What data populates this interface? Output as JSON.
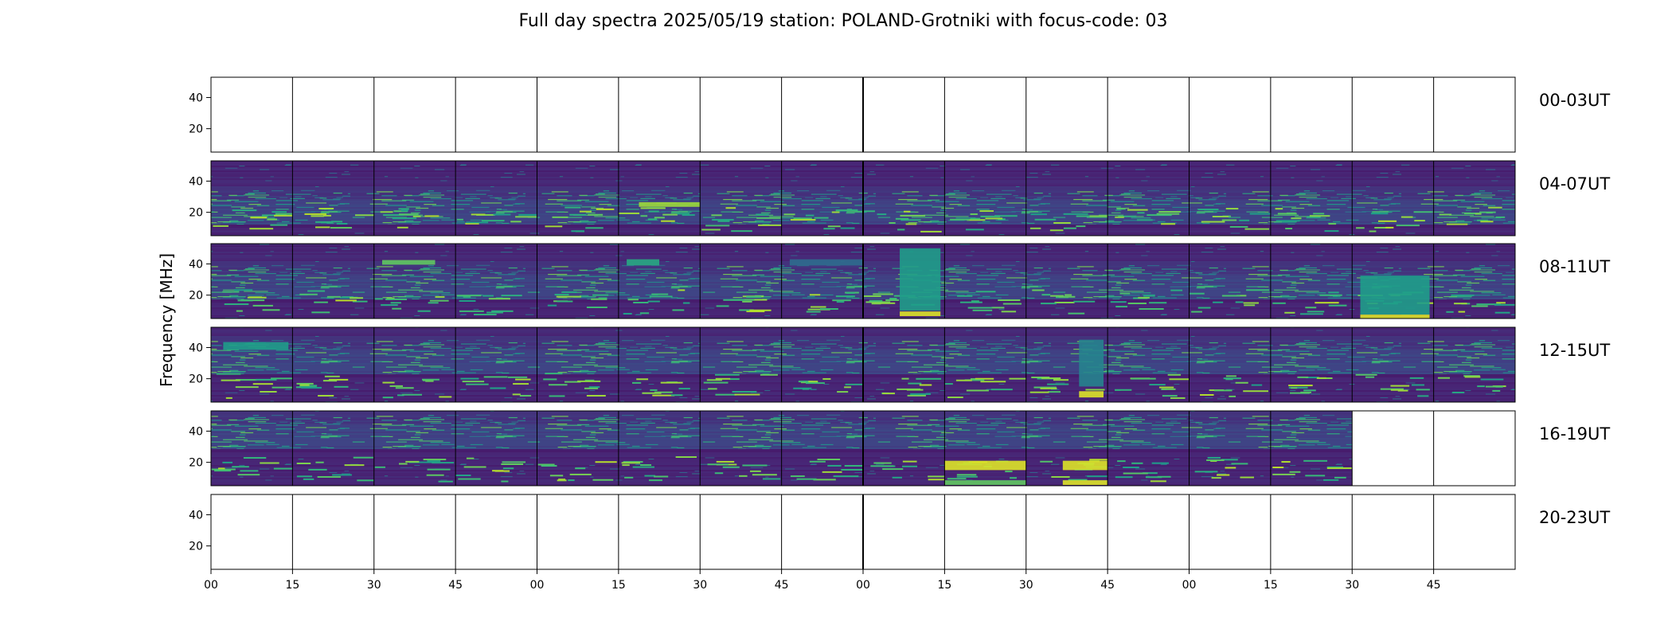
{
  "chart_data": {
    "type": "heatmap",
    "title": "Full day spectra 2025/05/19 station: POLAND-Grotniki with focus-code: 03",
    "ylabel": "Frequency [MHz]",
    "colormap": "viridis",
    "colormap_colors": [
      "#440154",
      "#482878",
      "#3e4989",
      "#31688e",
      "#26828e",
      "#1f9e89",
      "#35b779",
      "#6ece58",
      "#b5de2b",
      "#fde725"
    ],
    "freq_range_mhz": [
      5,
      53
    ],
    "yticks": [
      "40",
      "20"
    ],
    "ytick_values": [
      40,
      20
    ],
    "xticks": [
      "00",
      "15",
      "30",
      "45",
      "00",
      "15",
      "30",
      "45",
      "00",
      "15",
      "30",
      "45",
      "00",
      "15",
      "30",
      "45"
    ],
    "rows": [
      {
        "label": "00-03UT",
        "panels": [
          0,
          0,
          0,
          0,
          0,
          0,
          0,
          0,
          0,
          0,
          0,
          0,
          0,
          0,
          0,
          0
        ]
      },
      {
        "label": "04-07UT",
        "panels": [
          1,
          1,
          1,
          1,
          1,
          1,
          1,
          1,
          1,
          1,
          1,
          1,
          1,
          1,
          1,
          1
        ],
        "features": [
          {
            "panel": 5,
            "freq": 25,
            "intensity": 0.85,
            "start": 0.25,
            "end": 1.0,
            "width_mhz": 3
          }
        ]
      },
      {
        "label": "08-11UT",
        "panels": [
          1,
          1,
          1,
          1,
          1,
          1,
          1,
          1,
          1,
          1,
          1,
          1,
          1,
          1,
          1,
          1
        ],
        "features": [
          {
            "panel": 2,
            "freq": 41,
            "intensity": 0.75,
            "start": 0.1,
            "end": 0.75,
            "width_mhz": 3
          },
          {
            "panel": 5,
            "freq": 41,
            "intensity": 0.6,
            "start": 0.1,
            "end": 0.5,
            "width_mhz": 4
          },
          {
            "panel": 7,
            "freq": 41,
            "intensity": 0.35,
            "start": 0.1,
            "end": 1.0,
            "width_mhz": 4
          },
          {
            "panel": 8,
            "freq": 30,
            "intensity": 0.55,
            "start": 0.45,
            "end": 0.95,
            "width_mhz": 40
          },
          {
            "panel": 8,
            "freq": 8,
            "intensity": 0.95,
            "start": 0.45,
            "end": 0.95,
            "width_mhz": 3
          },
          {
            "panel": 14,
            "freq": 20,
            "intensity": 0.55,
            "start": 0.1,
            "end": 0.95,
            "width_mhz": 25
          },
          {
            "panel": 14,
            "freq": 6,
            "intensity": 0.95,
            "start": 0.1,
            "end": 0.95,
            "width_mhz": 3
          }
        ]
      },
      {
        "label": "12-15UT",
        "panels": [
          1,
          1,
          1,
          1,
          1,
          1,
          1,
          1,
          1,
          1,
          1,
          1,
          1,
          1,
          1,
          1
        ],
        "features": [
          {
            "panel": 0,
            "freq": 41,
            "intensity": 0.55,
            "start": 0.15,
            "end": 0.95,
            "width_mhz": 5
          },
          {
            "panel": 10,
            "freq": 30,
            "intensity": 0.45,
            "start": 0.65,
            "end": 0.95,
            "width_mhz": 30
          },
          {
            "panel": 10,
            "freq": 10,
            "intensity": 0.95,
            "start": 0.65,
            "end": 0.95,
            "width_mhz": 4
          }
        ]
      },
      {
        "label": "16-19UT",
        "panels": [
          1,
          1,
          1,
          1,
          1,
          1,
          1,
          1,
          1,
          1,
          1,
          1,
          1,
          1,
          0,
          0
        ],
        "features": [
          {
            "panel": 9,
            "freq": 18,
            "intensity": 0.95,
            "start": 0.0,
            "end": 1.0,
            "width_mhz": 6
          },
          {
            "panel": 9,
            "freq": 7,
            "intensity": 0.75,
            "start": 0.0,
            "end": 1.0,
            "width_mhz": 3
          },
          {
            "panel": 10,
            "freq": 18,
            "intensity": 0.95,
            "start": 0.45,
            "end": 1.0,
            "width_mhz": 6
          },
          {
            "panel": 10,
            "freq": 7,
            "intensity": 0.95,
            "start": 0.45,
            "end": 1.0,
            "width_mhz": 3
          }
        ]
      },
      {
        "label": "20-23UT",
        "panels": [
          0,
          0,
          0,
          0,
          0,
          0,
          0,
          0,
          0,
          0,
          0,
          0,
          0,
          0,
          0,
          0
        ]
      }
    ]
  }
}
